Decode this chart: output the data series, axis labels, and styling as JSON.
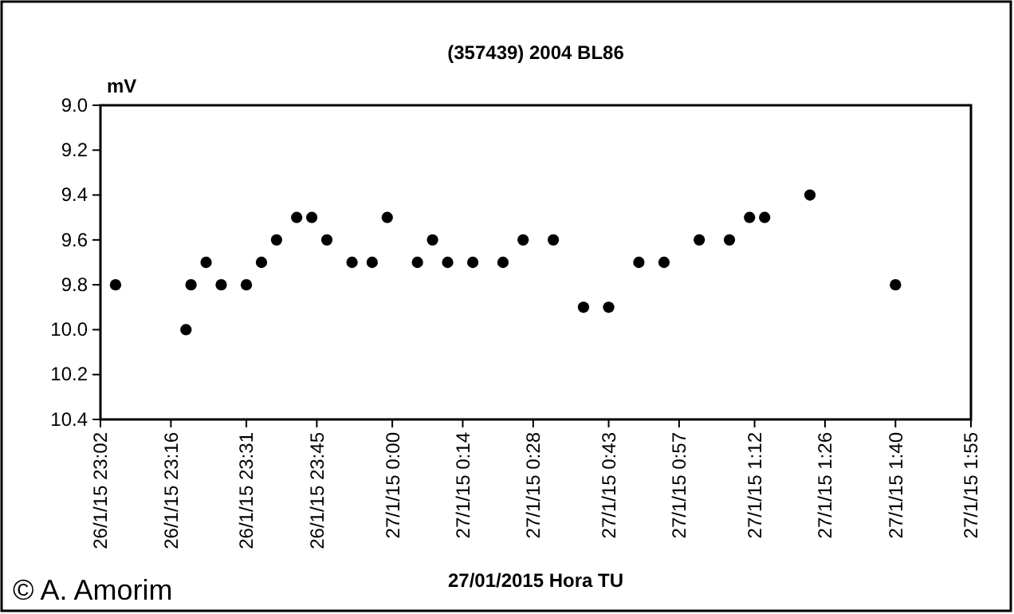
{
  "chart_data": {
    "type": "scatter",
    "title": "(357439)  2004  BL86",
    "ylabel": "mV",
    "xlabel": "27/01/2015 Hora TU",
    "annotations": [
      "© A. Amorim"
    ],
    "x": [
      "2015-01-26T23:05",
      "2015-01-26T23:19",
      "2015-01-26T23:20",
      "2015-01-26T23:23",
      "2015-01-26T23:26",
      "2015-01-26T23:31",
      "2015-01-26T23:34",
      "2015-01-26T23:37",
      "2015-01-26T23:41",
      "2015-01-26T23:44",
      "2015-01-26T23:47",
      "2015-01-26T23:52",
      "2015-01-26T23:56",
      "2015-01-26T23:59",
      "2015-01-27T00:05",
      "2015-01-27T00:08",
      "2015-01-27T00:11",
      "2015-01-27T00:16",
      "2015-01-27T00:22",
      "2015-01-27T00:26",
      "2015-01-27T00:32",
      "2015-01-27T00:38",
      "2015-01-27T00:43",
      "2015-01-27T00:49",
      "2015-01-27T00:54",
      "2015-01-27T01:01",
      "2015-01-27T01:07",
      "2015-01-27T01:11",
      "2015-01-27T01:14",
      "2015-01-27T01:23",
      "2015-01-27T01:40"
    ],
    "series": [
      {
        "color": "#000000",
        "values": [
          9.8,
          10.0,
          9.8,
          9.7,
          9.8,
          9.8,
          9.7,
          9.6,
          9.5,
          9.5,
          9.6,
          9.7,
          9.7,
          9.5,
          9.7,
          9.6,
          9.7,
          9.7,
          9.7,
          9.6,
          9.6,
          9.9,
          9.9,
          9.7,
          9.7,
          9.6,
          9.6,
          9.5,
          9.5,
          9.4,
          9.8
        ]
      }
    ],
    "xlim": [
      "2015-01-26T23:02",
      "2015-01-27T01:55"
    ],
    "xticks": [
      {
        "value": "2015-01-26T23:02",
        "label": "26/1/15 23:02"
      },
      {
        "value": "2015-01-26T23:16",
        "label": "26/1/15 23:16"
      },
      {
        "value": "2015-01-26T23:31",
        "label": "26/1/15 23:31"
      },
      {
        "value": "2015-01-26T23:45",
        "label": "26/1/15 23:45"
      },
      {
        "value": "2015-01-27T00:00",
        "label": "27/1/15 0:00"
      },
      {
        "value": "2015-01-27T00:14",
        "label": "27/1/15 0:14"
      },
      {
        "value": "2015-01-27T00:28",
        "label": "27/1/15 0:28"
      },
      {
        "value": "2015-01-27T00:43",
        "label": "27/1/15 0:43"
      },
      {
        "value": "2015-01-27T00:57",
        "label": "27/1/15 0:57"
      },
      {
        "value": "2015-01-27T01:12",
        "label": "27/1/15 1:12"
      },
      {
        "value": "2015-01-27T01:26",
        "label": "27/1/15 1:26"
      },
      {
        "value": "2015-01-27T01:40",
        "label": "27/1/15 1:40"
      },
      {
        "value": "2015-01-27T01:55",
        "label": "27/1/15 1:55"
      }
    ],
    "ylim": [
      10.4,
      9.0
    ],
    "yticks": [
      {
        "value": 9,
        "label": "9.0"
      },
      9.2,
      9.4,
      9.6,
      9.8,
      {
        "value": 10,
        "label": "10.0"
      },
      10.2,
      10.4
    ],
    "grid": false,
    "marker": "circle"
  }
}
